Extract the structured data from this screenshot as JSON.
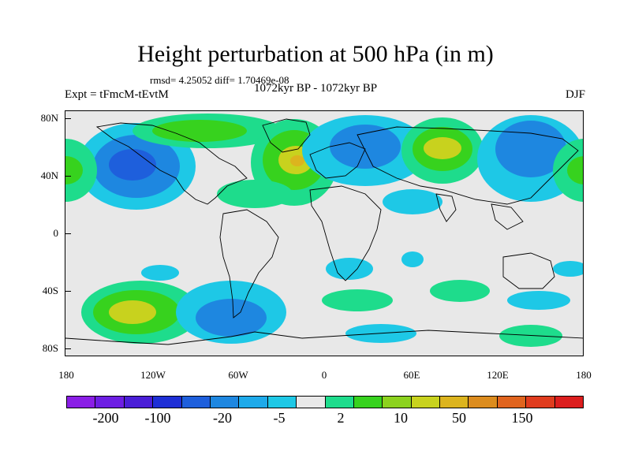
{
  "title": "Height perturbation at 500 hPa (in m)",
  "stats": "rmsd= 4.25052 diff= 1.70469e-08",
  "experiment": "Expt = tFmcM-tEvtM",
  "period": "1072kyr BP - 1072kyr BP",
  "season": "DJF",
  "lat_labels": [
    "80N",
    "40N",
    "0",
    "40S",
    "80S"
  ],
  "lon_labels": [
    "180",
    "120W",
    "60W",
    "0",
    "60E",
    "120E",
    "180"
  ],
  "colorbar": {
    "colors": [
      "#8a1ee6",
      "#6d1ee3",
      "#4a1ed7",
      "#1e2fd6",
      "#1e5fdc",
      "#1e87e0",
      "#1eaaea",
      "#1ec8e6",
      "#e8e8e8",
      "#1edc8c",
      "#37d21e",
      "#8cd21e",
      "#c8d21e",
      "#dcb41e",
      "#dc8c1e",
      "#e0641e",
      "#e03c1e",
      "#dc1e1e"
    ],
    "labels": [
      "-200",
      "-100",
      "-20",
      "-5",
      "2",
      "10",
      "50",
      "150"
    ]
  },
  "colors": {
    "background": "#e8e8e8",
    "blue_light": "#1ec8e6",
    "blue_mid": "#1e87e0",
    "blue_dark": "#1e5fdc",
    "green_light": "#1edc8c",
    "green": "#37d21e",
    "yellow": "#c8d21e",
    "orange": "#dcb41e"
  }
}
